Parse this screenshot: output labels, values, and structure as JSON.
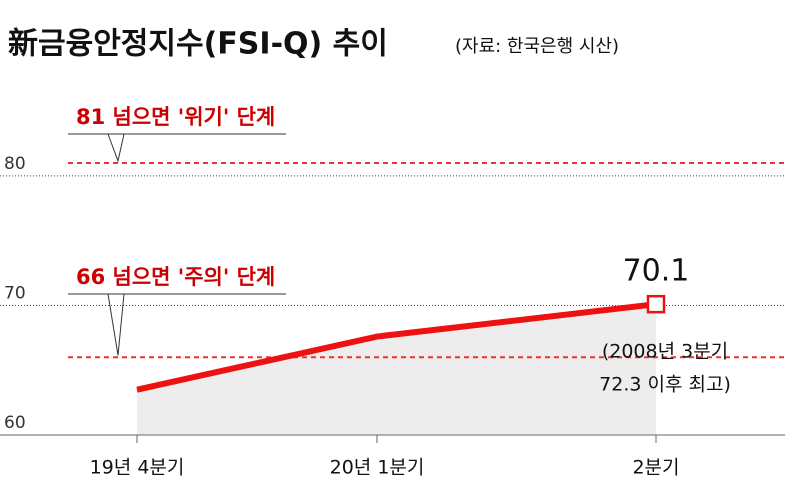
{
  "chart_data": {
    "type": "line",
    "title": "新금융안정지수(FSI-Q) 추이",
    "subtitle": "(자료: 한국은행 시산)",
    "categories": [
      "19년 4분기",
      "20년 1분기",
      "2분기"
    ],
    "series": [
      {
        "name": "FSI-Q",
        "color": "#ee1111",
        "values": [
          63.5,
          67.6,
          70.1
        ]
      }
    ],
    "ylim": [
      60,
      82
    ],
    "yticks": [
      60,
      70,
      80
    ],
    "thresholds": [
      {
        "value": 81,
        "label": "81 넘으면 '위기' 단계"
      },
      {
        "value": 66,
        "label": "66 넘으면 '주의' 단계"
      }
    ],
    "note_lines": [
      "(2008년 3분기",
      "72.3 이후 최고)"
    ]
  }
}
